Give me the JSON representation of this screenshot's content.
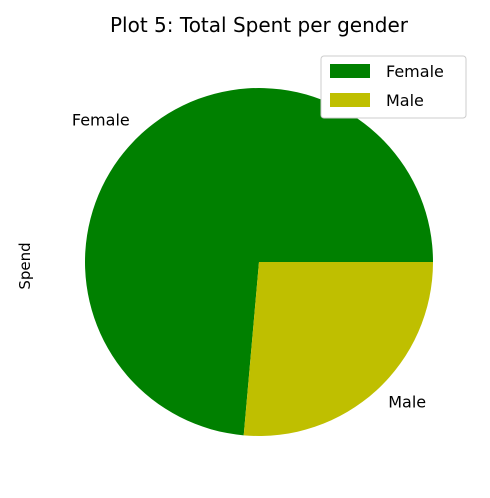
{
  "chart_data": {
    "type": "pie",
    "title": "Plot 5: Total Spent per gender",
    "ylabel": "Spend",
    "labels": [
      "Female",
      "Male"
    ],
    "values": [
      73.6,
      26.4
    ],
    "colors": [
      "#008000",
      "#bfbf00"
    ],
    "start_angle_deg": 0,
    "direction": "counterclockwise",
    "legend": {
      "placement": "top-right",
      "entries": [
        "Female",
        "Male"
      ]
    }
  }
}
